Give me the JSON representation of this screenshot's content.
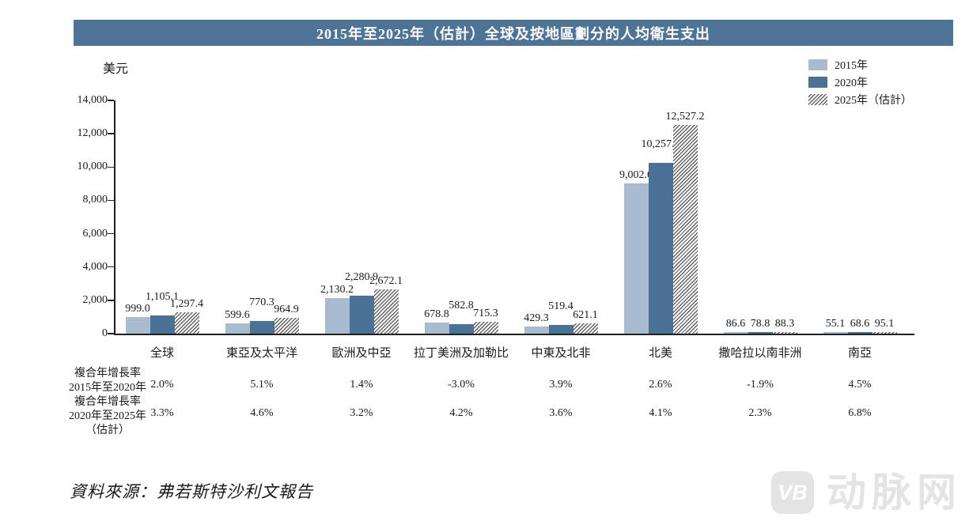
{
  "colors": {
    "titleBg": "#4d7496",
    "bar2015": "#a9bccf",
    "bar2020": "#4a7296",
    "hatchLine": "#636363",
    "axis": "#1f1f1f",
    "text": "#1a1a1a",
    "watermark": "#e4e4e4"
  },
  "legend": [
    {
      "label": "2015年",
      "swatch": "solid-light"
    },
    {
      "label": "2020年",
      "swatch": "solid-dark"
    },
    {
      "label": "2025年（估計）",
      "swatch": "hatch"
    }
  ],
  "chart_data": {
    "type": "bar",
    "title": "2015年至2025年（估計）全球及按地區劃分的人均衛生支出",
    "ylabel": "美元",
    "xlabel": "",
    "ylim": [
      0,
      14000
    ],
    "ytick_values": [
      0,
      2000,
      4000,
      6000,
      8000,
      10000,
      12000,
      14000
    ],
    "ytick_labels": [
      "0",
      "2,000",
      "4,000",
      "6,000",
      "8,000",
      "10,000",
      "12,000",
      "14,000"
    ],
    "grid": false,
    "legend_position": "top-right",
    "categories": [
      "全球",
      "東亞及太平洋",
      "歐洲及中亞",
      "拉丁美洲及加勒比",
      "中東及北非",
      "北美",
      "撒哈拉以南非洲",
      "南亞"
    ],
    "series": [
      {
        "name": "2015年",
        "values": [
          999.0,
          599.6,
          2130.2,
          678.8,
          429.3,
          9002.6,
          86.6,
          55.1
        ],
        "labels": [
          "999.0",
          "599.6",
          "2,130.2",
          "678.8",
          "429.3",
          "9,002.6",
          "86.6",
          "55.1"
        ]
      },
      {
        "name": "2020年",
        "values": [
          1105.1,
          770.3,
          2280.9,
          582.8,
          519.4,
          10257.4,
          78.8,
          68.6
        ],
        "labels": [
          "1,105.1",
          "770.3",
          "2,280.9",
          "582.8",
          "519.4",
          "10,257.4",
          "78.8",
          "68.6"
        ]
      },
      {
        "name": "2025年（估計）",
        "values": [
          1297.4,
          964.9,
          2672.1,
          715.3,
          621.1,
          12527.2,
          88.3,
          95.1
        ],
        "labels": [
          "1,297.4",
          "964.9",
          "2,672.1",
          "715.3",
          "621.1",
          "12,527.2",
          "88.3",
          "95.1"
        ]
      }
    ]
  },
  "cagr": {
    "rows": [
      {
        "label_lines": [
          "複合年增長率",
          "2015年至2020年"
        ],
        "values": [
          "2.0%",
          "5.1%",
          "1.4%",
          "-3.0%",
          "3.9%",
          "2.6%",
          "-1.9%",
          "4.5%"
        ]
      },
      {
        "label_lines": [
          "複合年增長率",
          "2020年至2025年",
          "（估計）"
        ],
        "values": [
          "3.3%",
          "4.6%",
          "3.2%",
          "4.2%",
          "3.6%",
          "4.1%",
          "2.3%",
          "6.8%"
        ]
      }
    ]
  },
  "source": "資料來源：弗若斯特沙利文報告",
  "watermark": {
    "badge": "VB",
    "text": "动脉网"
  }
}
